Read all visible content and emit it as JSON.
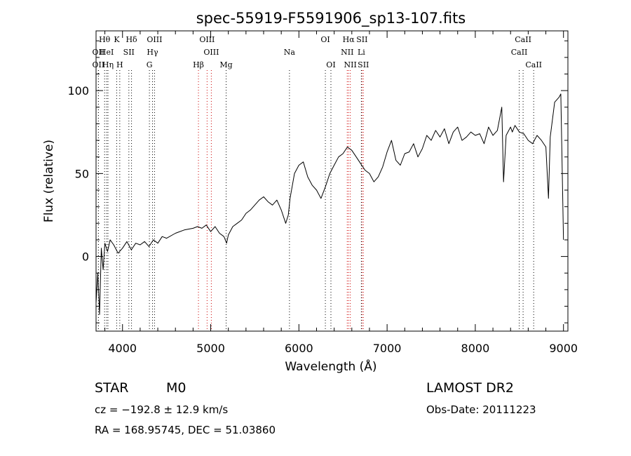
{
  "chart_data": {
    "type": "line",
    "title": "spec-55919-F5591906_sp13-107.fits",
    "xlabel": "Wavelength (Å)",
    "ylabel": "Flux (relative)",
    "xlim": [
      3700,
      9050
    ],
    "ylim": [
      -45,
      136
    ],
    "xticks": [
      4000,
      5000,
      6000,
      7000,
      8000,
      9000
    ],
    "yticks": [
      0,
      50,
      100
    ],
    "grid": false,
    "series": [
      {
        "color": "#000000",
        "x": [
          3700,
          3720,
          3740,
          3760,
          3780,
          3800,
          3830,
          3860,
          3900,
          3950,
          4000,
          4050,
          4100,
          4150,
          4200,
          4250,
          4300,
          4350,
          4400,
          4450,
          4500,
          4600,
          4700,
          4800,
          4850,
          4900,
          4950,
          5000,
          5050,
          5100,
          5150,
          5180,
          5200,
          5250,
          5300,
          5350,
          5400,
          5450,
          5500,
          5550,
          5600,
          5650,
          5700,
          5750,
          5800,
          5850,
          5880,
          5900,
          5950,
          6000,
          6050,
          6100,
          6150,
          6200,
          6250,
          6300,
          6350,
          6400,
          6450,
          6500,
          6550,
          6600,
          6650,
          6700,
          6750,
          6800,
          6850,
          6900,
          6950,
          7000,
          7050,
          7100,
          7150,
          7200,
          7250,
          7300,
          7350,
          7400,
          7450,
          7500,
          7550,
          7600,
          7650,
          7700,
          7750,
          7800,
          7850,
          7900,
          7950,
          8000,
          8050,
          8100,
          8150,
          8200,
          8250,
          8300,
          8320,
          8350,
          8400,
          8420,
          8450,
          8500,
          8550,
          8600,
          8650,
          8700,
          8750,
          8800,
          8830,
          8850,
          8900,
          8950,
          8970,
          9000
        ],
        "y": [
          -28,
          -10,
          -35,
          5,
          -8,
          8,
          3,
          10,
          7,
          2,
          5,
          9,
          4,
          8,
          7,
          9,
          6,
          10,
          8,
          12,
          11,
          14,
          16,
          17,
          18,
          17,
          19,
          15,
          18,
          14,
          12,
          8,
          13,
          18,
          20,
          22,
          26,
          28,
          31,
          34,
          36,
          33,
          31,
          34,
          28,
          20,
          25,
          35,
          50,
          55,
          57,
          48,
          43,
          40,
          35,
          42,
          50,
          55,
          60,
          62,
          66,
          64,
          60,
          56,
          52,
          50,
          45,
          48,
          54,
          63,
          70,
          58,
          55,
          62,
          63,
          68,
          60,
          65,
          73,
          70,
          76,
          72,
          77,
          68,
          75,
          78,
          70,
          72,
          75,
          73,
          74,
          68,
          78,
          73,
          76,
          90,
          45,
          73,
          78,
          75,
          79,
          75,
          74,
          70,
          68,
          73,
          70,
          66,
          35,
          72,
          93,
          96,
          98,
          10
        ]
      }
    ],
    "spectral_lines": [
      {
        "label": "Hθ",
        "x": 3797,
        "row": 0
      },
      {
        "label": "K",
        "x": 3934,
        "row": 0
      },
      {
        "label": "Hδ",
        "x": 4102,
        "row": 0
      },
      {
        "label": "OIII",
        "x": 4363,
        "row": 0
      },
      {
        "label": "OIII",
        "x": 4959,
        "row": 0
      },
      {
        "label": "OI",
        "x": 6300,
        "row": 0
      },
      {
        "label": "Hα",
        "x": 6563,
        "row": 0
      },
      {
        "label": "SII",
        "x": 6716,
        "row": 0
      },
      {
        "label": "CaII",
        "x": 8542,
        "row": 0
      },
      {
        "label": "OII",
        "x": 3727,
        "row": 1
      },
      {
        "label": "HeI",
        "x": 3820,
        "row": 1
      },
      {
        "label": "SII",
        "x": 4072,
        "row": 1
      },
      {
        "label": "Hγ",
        "x": 4340,
        "row": 1
      },
      {
        "label": "OIII",
        "x": 5007,
        "row": 1
      },
      {
        "label": "Na",
        "x": 5893,
        "row": 1
      },
      {
        "label": "NII",
        "x": 6548,
        "row": 1
      },
      {
        "label": "Li",
        "x": 6708,
        "row": 1
      },
      {
        "label": "CaII",
        "x": 8498,
        "row": 1
      },
      {
        "label": "OII",
        "x": 3727,
        "row": 2
      },
      {
        "label": "Hη",
        "x": 3835,
        "row": 2
      },
      {
        "label": "H",
        "x": 3969,
        "row": 2
      },
      {
        "label": "G",
        "x": 4305,
        "row": 2
      },
      {
        "label": "Hβ",
        "x": 4861,
        "row": 2
      },
      {
        "label": "Mg",
        "x": 5175,
        "row": 2
      },
      {
        "label": "OI",
        "x": 6363,
        "row": 2
      },
      {
        "label": "NII",
        "x": 6583,
        "row": 2
      },
      {
        "label": "SII",
        "x": 6731,
        "row": 2
      },
      {
        "label": "CaII",
        "x": 8662,
        "row": 2
      }
    ],
    "emission_line_color": "#cc0000",
    "absorption_line_color": "#000000"
  },
  "info": {
    "class_label": "STAR",
    "subclass_label": "M0",
    "survey": "LAMOST DR2",
    "cz_text": "cz = −192.8 ± 12.9 km/s",
    "obs_date_text": "Obs-Date: 20111223",
    "coords_text": "RA = 168.95745, DEC =  51.03860"
  }
}
